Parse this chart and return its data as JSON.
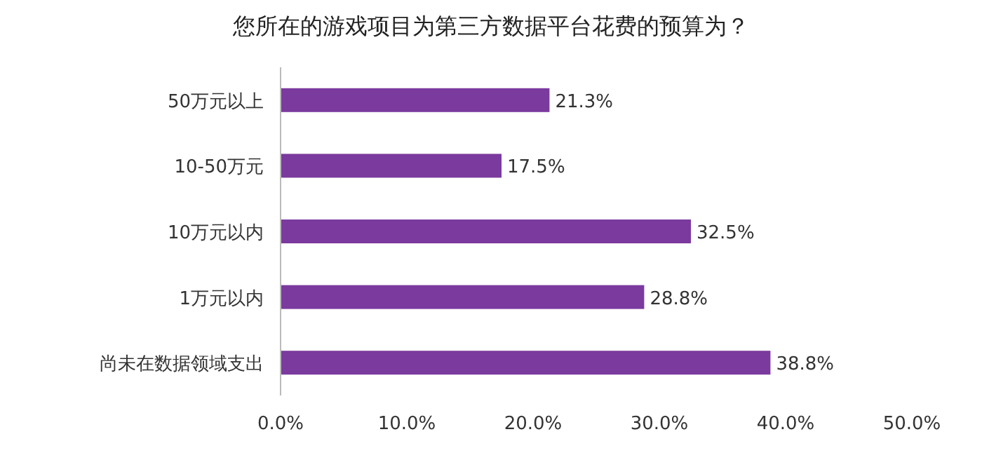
{
  "chart_data": {
    "type": "bar",
    "orientation": "horizontal",
    "title": "您所在的游戏项目为第三方数据平台花费的预算为？",
    "categories": [
      "50万元以上",
      "10-50万元",
      "10万元以内",
      "1万元以内",
      "尚未在数据领域支出"
    ],
    "values": [
      21.3,
      17.5,
      32.5,
      28.8,
      38.8
    ],
    "value_labels": [
      "21.3%",
      "17.5%",
      "32.5%",
      "28.8%",
      "38.8%"
    ],
    "color": "#7b3a9e",
    "xlim": [
      0,
      50
    ],
    "xticks": [
      {
        "value": 0,
        "label": "0.0%"
      },
      {
        "value": 10,
        "label": "10.0%"
      },
      {
        "value": 20,
        "label": "20.0%"
      },
      {
        "value": 30,
        "label": "30.0%"
      },
      {
        "value": 40,
        "label": "40.0%"
      },
      {
        "value": 50,
        "label": "50.0%"
      }
    ],
    "grid": false
  }
}
